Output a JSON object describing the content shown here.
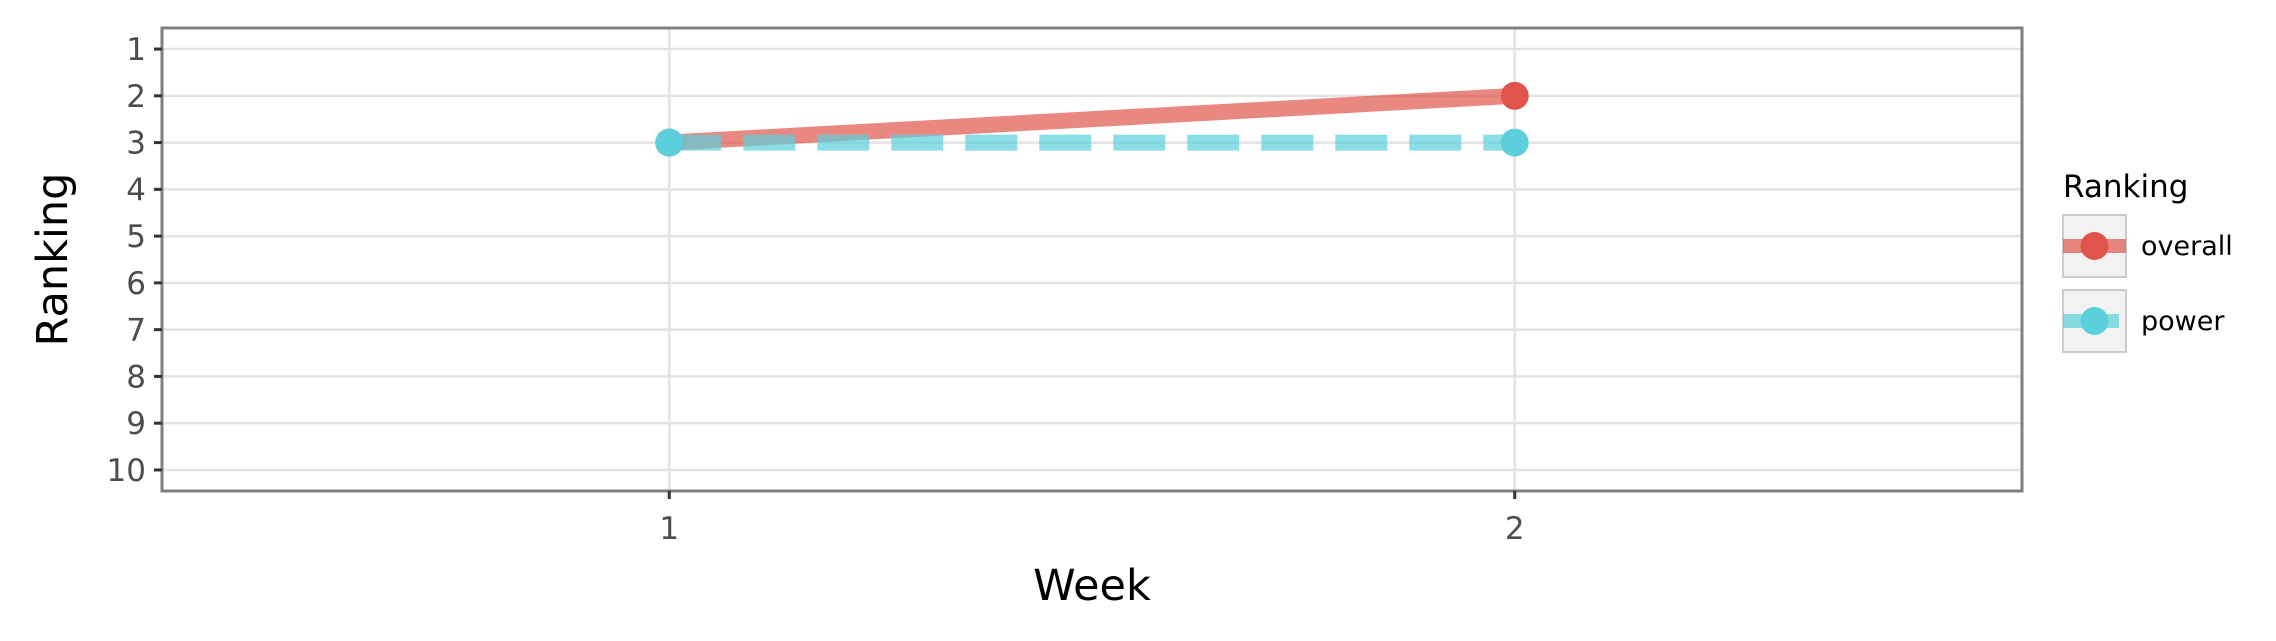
{
  "chart_data": {
    "type": "line",
    "xlabel": "Week",
    "ylabel": "Ranking",
    "x": [
      1,
      2
    ],
    "x_ticks": [
      "1",
      "2"
    ],
    "xlim": [
      0.4,
      2.6
    ],
    "y_ticks": [
      "1",
      "2",
      "3",
      "4",
      "5",
      "6",
      "7",
      "8",
      "9",
      "10"
    ],
    "ylim": [
      0.55,
      10.45
    ],
    "y_reversed": true,
    "grid": true,
    "legend": {
      "title": "Ranking",
      "placement": "right"
    },
    "series": [
      {
        "name": "overall",
        "values": [
          3,
          2
        ],
        "color": "#e0554b",
        "line_style": "solid"
      },
      {
        "name": "power",
        "values": [
          3,
          3
        ],
        "color": "#5bd0dc",
        "line_style": "dashed"
      }
    ]
  }
}
